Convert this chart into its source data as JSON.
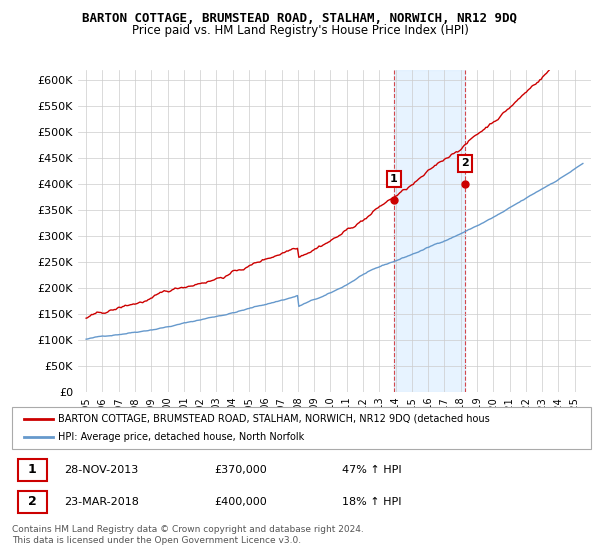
{
  "title": "BARTON COTTAGE, BRUMSTEAD ROAD, STALHAM, NORWICH, NR12 9DQ",
  "subtitle": "Price paid vs. HM Land Registry's House Price Index (HPI)",
  "ylim": [
    0,
    620000
  ],
  "yticks": [
    0,
    50000,
    100000,
    150000,
    200000,
    250000,
    300000,
    350000,
    400000,
    450000,
    500000,
    550000,
    600000
  ],
  "ytick_labels": [
    "£0",
    "£50K",
    "£100K",
    "£150K",
    "£200K",
    "£250K",
    "£300K",
    "£350K",
    "£400K",
    "£450K",
    "£500K",
    "£550K",
    "£600K"
  ],
  "sale1_price": 370000,
  "sale1_date_str": "28-NOV-2013",
  "sale1_pct": "47% ↑ HPI",
  "sale1_x": 2013.9,
  "sale2_price": 400000,
  "sale2_date_str": "23-MAR-2018",
  "sale2_pct": "18% ↑ HPI",
  "sale2_x": 2018.25,
  "red_color": "#cc0000",
  "blue_color": "#6699cc",
  "shade_color": "#ddeeff",
  "legend_label_red": "BARTON COTTAGE, BRUMSTEAD ROAD, STALHAM, NORWICH, NR12 9DQ (detached hous",
  "legend_label_blue": "HPI: Average price, detached house, North Norfolk",
  "footer": "Contains HM Land Registry data © Crown copyright and database right 2024.\nThis data is licensed under the Open Government Licence v3.0."
}
